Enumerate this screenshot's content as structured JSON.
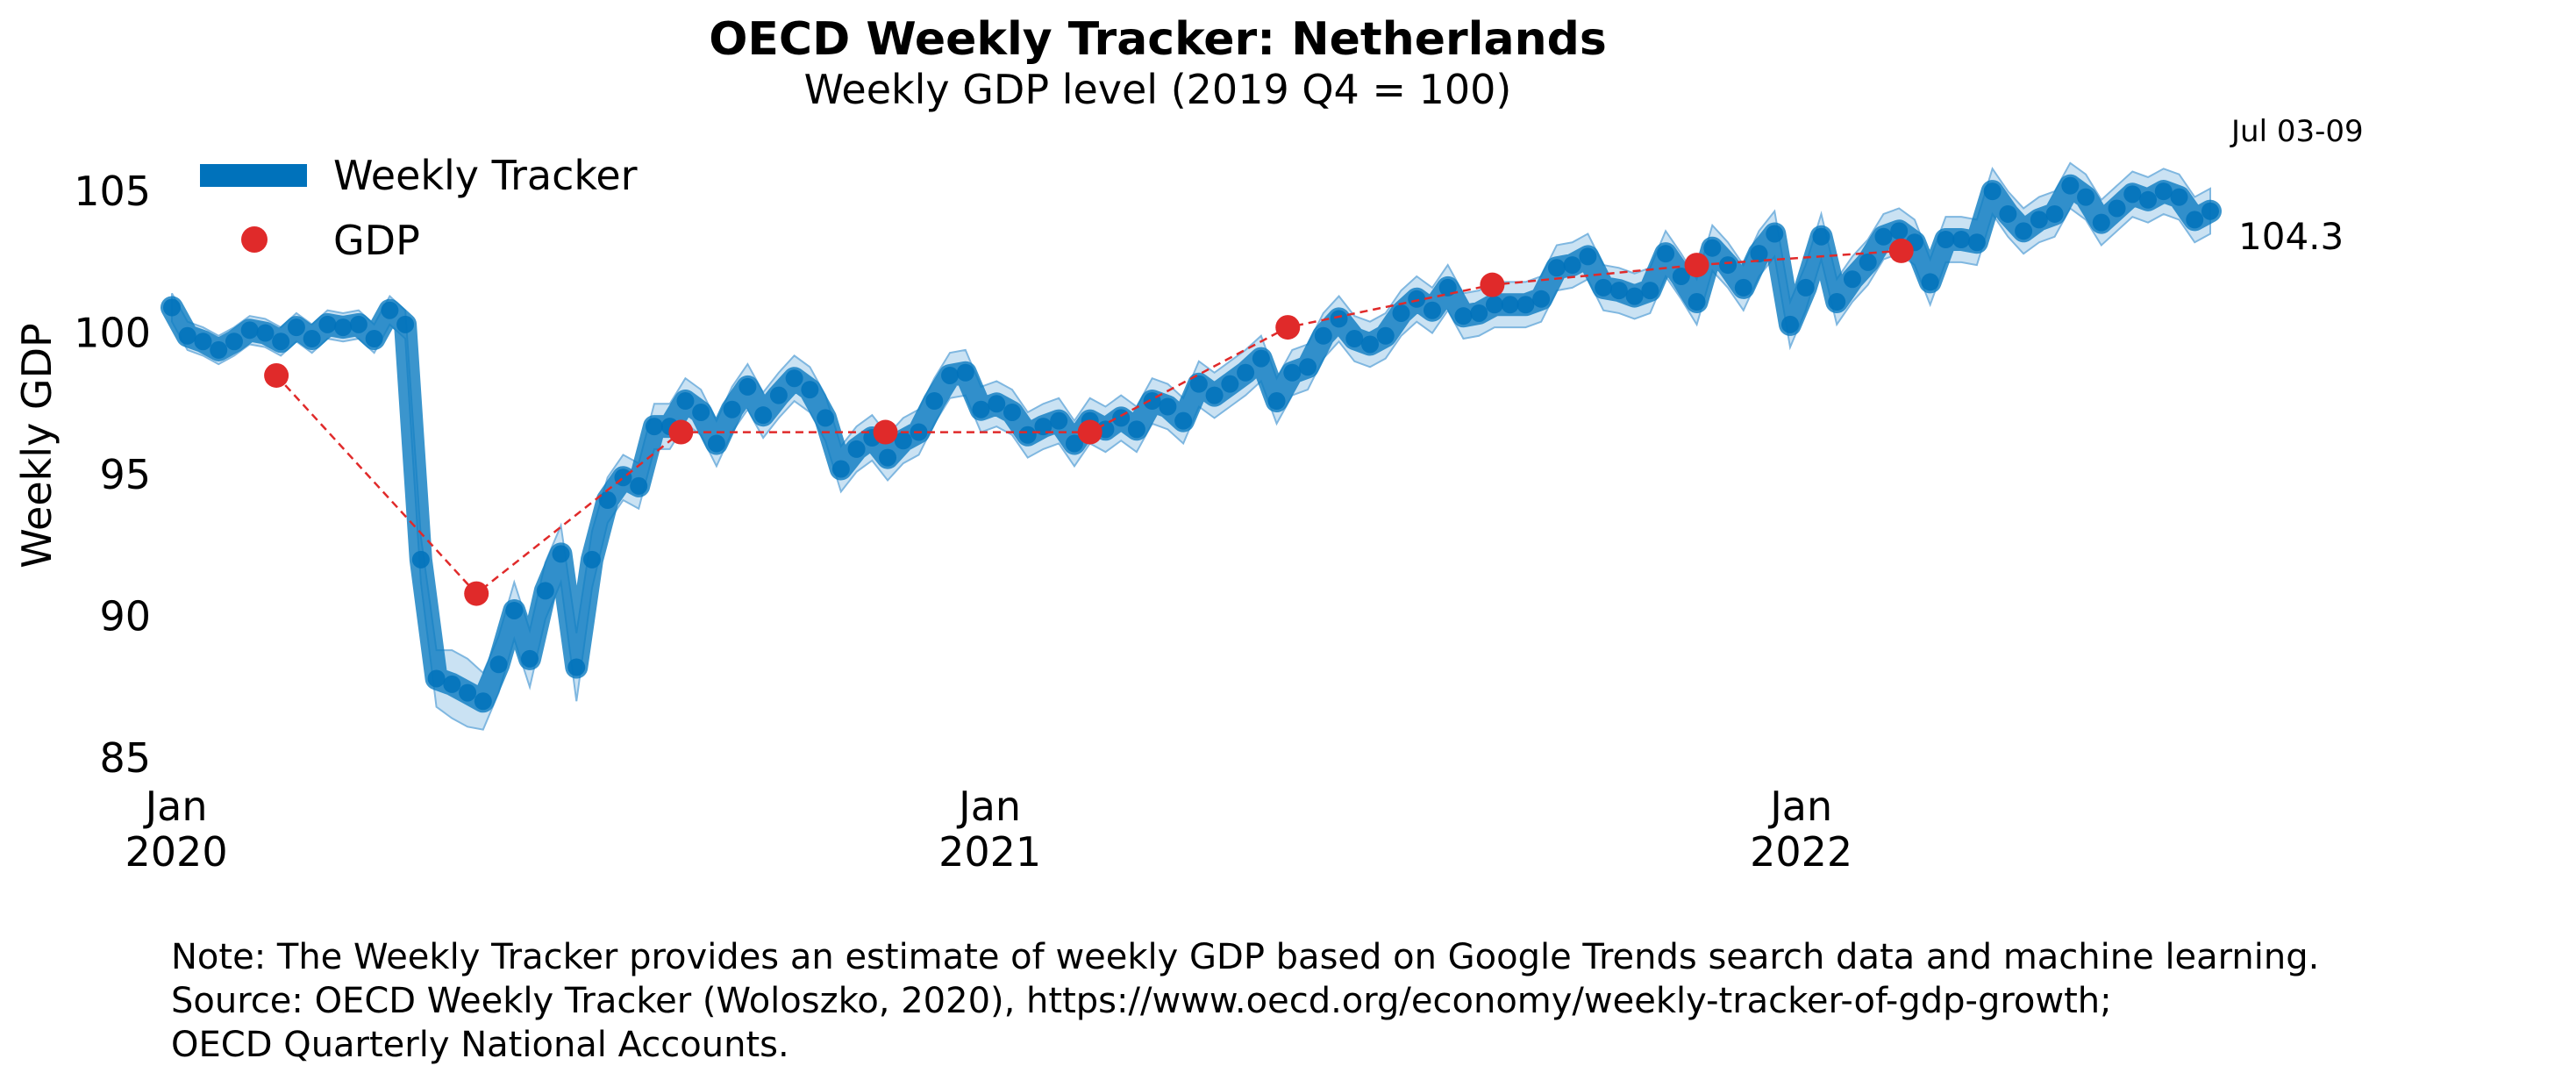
{
  "chart_data": {
    "type": "line",
    "title": "OECD Weekly Tracker: Netherlands",
    "subtitle": "Weekly GDP level (2019 Q4 = 100)",
    "ylabel": "Weekly GDP",
    "xlabel": "",
    "ylim": [
      84.5,
      106.8
    ],
    "xlim": [
      "2019-12-30",
      "2022-07-04"
    ],
    "y_ticks": [
      85,
      90,
      95,
      100,
      105
    ],
    "x_ticks": [
      {
        "date": "2020-01-01",
        "month": "Jan",
        "year": "2020"
      },
      {
        "date": "2021-01-01",
        "month": "Jan",
        "year": "2021"
      },
      {
        "date": "2022-01-01",
        "month": "Jan",
        "year": "2022"
      }
    ],
    "grid": false,
    "legend": {
      "placement": "top-left",
      "entries": [
        "Weekly Tracker",
        "GDP"
      ]
    },
    "colors": {
      "tracker": "#0072BB",
      "band": "#9ECAE9",
      "gdp": "#E02A2A"
    },
    "series": [
      {
        "name": "Weekly Tracker",
        "x": [
          "2019-12-30",
          "2020-01-06",
          "2020-01-13",
          "2020-01-20",
          "2020-01-27",
          "2020-02-03",
          "2020-02-10",
          "2020-02-17",
          "2020-02-24",
          "2020-03-02",
          "2020-03-09",
          "2020-03-16",
          "2020-03-23",
          "2020-03-30",
          "2020-04-06",
          "2020-04-13",
          "2020-04-20",
          "2020-04-27",
          "2020-05-04",
          "2020-05-11",
          "2020-05-18",
          "2020-05-25",
          "2020-06-01",
          "2020-06-08",
          "2020-06-15",
          "2020-06-22",
          "2020-06-29",
          "2020-07-06",
          "2020-07-13",
          "2020-07-20",
          "2020-07-27",
          "2020-08-03",
          "2020-08-10",
          "2020-08-17",
          "2020-08-24",
          "2020-08-31",
          "2020-09-07",
          "2020-09-14",
          "2020-09-21",
          "2020-09-28",
          "2020-10-05",
          "2020-10-12",
          "2020-10-19",
          "2020-10-26",
          "2020-11-02",
          "2020-11-09",
          "2020-11-16",
          "2020-11-23",
          "2020-11-30",
          "2020-12-07",
          "2020-12-14",
          "2020-12-21",
          "2020-12-28",
          "2021-01-04",
          "2021-01-11",
          "2021-01-18",
          "2021-01-25",
          "2021-02-01",
          "2021-02-08",
          "2021-02-15",
          "2021-02-22",
          "2021-03-01",
          "2021-03-08",
          "2021-03-15",
          "2021-03-22",
          "2021-03-29",
          "2021-04-05",
          "2021-04-12",
          "2021-04-19",
          "2021-04-26",
          "2021-05-03",
          "2021-05-10",
          "2021-05-17",
          "2021-05-24",
          "2021-05-31",
          "2021-06-07",
          "2021-06-14",
          "2021-06-21",
          "2021-06-28",
          "2021-07-05",
          "2021-07-12",
          "2021-07-19",
          "2021-07-26",
          "2021-08-02",
          "2021-08-09",
          "2021-08-16",
          "2021-08-23",
          "2021-08-30",
          "2021-09-06",
          "2021-09-13",
          "2021-09-20",
          "2021-09-27",
          "2021-10-04",
          "2021-10-11",
          "2021-10-18",
          "2021-10-25",
          "2021-11-01",
          "2021-11-08",
          "2021-11-15",
          "2021-11-22",
          "2021-11-29",
          "2021-12-06",
          "2021-12-13",
          "2021-12-20",
          "2021-12-27",
          "2022-01-03",
          "2022-01-10",
          "2022-01-17",
          "2022-01-24",
          "2022-01-31",
          "2022-02-07",
          "2022-02-14",
          "2022-02-21",
          "2022-02-28",
          "2022-03-07",
          "2022-03-14",
          "2022-03-21",
          "2022-03-28",
          "2022-04-04",
          "2022-04-11",
          "2022-04-18",
          "2022-04-25",
          "2022-05-02",
          "2022-05-09",
          "2022-05-16",
          "2022-05-23",
          "2022-05-30",
          "2022-06-06",
          "2022-06-13",
          "2022-06-20",
          "2022-06-27",
          "2022-07-04"
        ],
        "y": [
          100.9,
          99.9,
          99.7,
          99.4,
          99.7,
          100.1,
          100.0,
          99.7,
          100.2,
          99.8,
          100.3,
          100.2,
          100.3,
          99.8,
          100.8,
          100.3,
          92.0,
          87.8,
          87.6,
          87.3,
          87.0,
          88.3,
          90.2,
          88.5,
          90.9,
          92.2,
          88.2,
          92.0,
          94.1,
          94.9,
          94.6,
          96.7,
          96.7,
          97.6,
          97.2,
          96.1,
          97.3,
          98.1,
          97.1,
          97.8,
          98.4,
          98.0,
          97.0,
          95.2,
          95.9,
          96.3,
          95.6,
          96.2,
          96.5,
          97.6,
          98.5,
          98.6,
          97.3,
          97.5,
          97.2,
          96.4,
          96.7,
          96.9,
          96.1,
          96.9,
          96.6,
          97.0,
          96.6,
          97.6,
          97.4,
          96.9,
          98.2,
          97.8,
          98.2,
          98.6,
          99.1,
          97.6,
          98.6,
          98.8,
          99.9,
          100.5,
          99.8,
          99.6,
          99.9,
          100.7,
          101.2,
          100.8,
          101.6,
          100.6,
          100.7,
          101.0,
          101.0,
          101.0,
          101.2,
          102.3,
          102.4,
          102.7,
          101.6,
          101.5,
          101.3,
          101.5,
          102.8,
          102.0,
          101.1,
          103.0,
          102.4,
          101.6,
          102.8,
          103.5,
          100.3,
          101.6,
          103.4,
          101.1,
          101.9,
          102.5,
          103.4,
          103.6,
          103.2,
          101.8,
          103.3,
          103.3,
          103.2,
          105.0,
          104.2,
          103.6,
          104.0,
          104.2,
          105.2,
          104.8,
          103.9,
          104.4,
          104.9,
          104.7,
          105.0,
          104.8,
          104.0,
          104.3
        ]
      },
      {
        "name": "GDP",
        "x": [
          "2020-02-15",
          "2020-05-15",
          "2020-08-15",
          "2020-11-15",
          "2021-02-15",
          "2021-05-15",
          "2021-08-15",
          "2021-11-15",
          "2022-02-15"
        ],
        "y": [
          98.5,
          90.8,
          96.5,
          96.5,
          96.5,
          100.2,
          101.7,
          102.4,
          102.9
        ]
      }
    ],
    "band_width": [
      0.5,
      0.5,
      0.5,
      0.5,
      0.5,
      0.5,
      0.5,
      0.5,
      0.5,
      0.5,
      0.5,
      0.5,
      0.5,
      0.5,
      0.5,
      0.5,
      0.8,
      1.0,
      1.2,
      1.2,
      1.0,
      1.0,
      1.0,
      1.0,
      1.0,
      1.0,
      1.2,
      1.0,
      0.8,
      0.8,
      0.8,
      0.8,
      0.8,
      0.8,
      0.8,
      0.8,
      0.8,
      0.8,
      0.8,
      0.8,
      0.8,
      0.8,
      0.8,
      0.8,
      0.8,
      0.8,
      0.8,
      0.8,
      0.8,
      0.8,
      0.8,
      0.8,
      0.8,
      0.8,
      0.8,
      0.8,
      0.8,
      0.8,
      0.8,
      0.8,
      0.8,
      0.8,
      0.8,
      0.8,
      0.8,
      0.8,
      0.8,
      0.8,
      0.8,
      0.8,
      0.8,
      0.8,
      0.8,
      0.8,
      0.8,
      0.8,
      0.8,
      0.8,
      0.8,
      0.8,
      0.8,
      0.8,
      0.8,
      0.8,
      0.8,
      0.8,
      0.8,
      0.8,
      0.8,
      0.8,
      0.8,
      0.8,
      0.8,
      0.8,
      0.8,
      0.8,
      0.8,
      0.8,
      0.8,
      0.8,
      0.8,
      0.8,
      0.8,
      0.8,
      0.8,
      0.8,
      0.8,
      0.8,
      0.8,
      0.8,
      0.8,
      0.8,
      0.8,
      0.8,
      0.8,
      0.8,
      0.8,
      0.8,
      0.8,
      0.8,
      0.8,
      0.8,
      0.8,
      0.8,
      0.8,
      0.8,
      0.8,
      0.8,
      0.8,
      0.8,
      0.8,
      0.8
    ],
    "annotation": {
      "label": "Jul 03-09",
      "value": "104.3"
    }
  },
  "note_lines": [
    "Note: The Weekly Tracker provides an estimate of weekly GDP based on Google Trends search data and machine learning.",
    "Source: OECD Weekly Tracker (Woloszko, 2020), https://www.oecd.org/economy/weekly-tracker-of-gdp-growth;",
    "OECD Quarterly National Accounts."
  ]
}
